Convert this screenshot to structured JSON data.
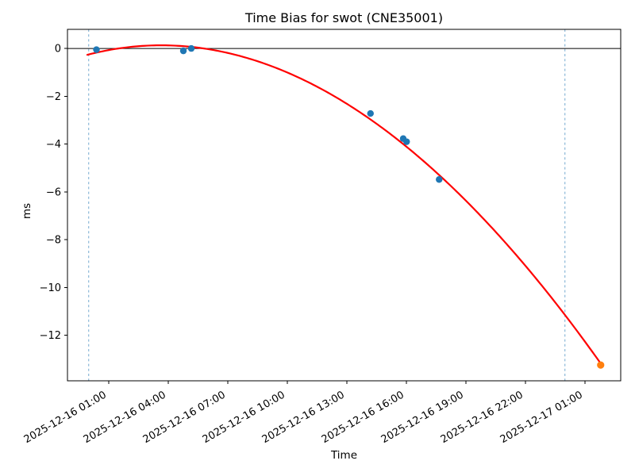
{
  "chart_data": {
    "type": "scatter",
    "title": "Time Bias for swot (CNE35001)",
    "xlabel": "Time",
    "ylabel": "ms",
    "x_axis": {
      "unit": "hours since 2025-12-16 00:00",
      "lim_hours": [
        -1.07,
        26.81
      ],
      "tick_hours": [
        1,
        4,
        7,
        10,
        13,
        16,
        19,
        22,
        25
      ],
      "tick_labels": [
        "2025-12-16 01:00",
        "2025-12-16 04:00",
        "2025-12-16 07:00",
        "2025-12-16 10:00",
        "2025-12-16 13:00",
        "2025-12-16 16:00",
        "2025-12-16 19:00",
        "2025-12-16 22:00",
        "2025-12-17 01:00"
      ]
    },
    "y_axis": {
      "lim": [
        -13.9,
        0.8
      ],
      "tick_values": [
        0,
        -2,
        -4,
        -6,
        -8,
        -10,
        -12
      ],
      "tick_labels": [
        "0",
        "−2",
        "−4",
        "−6",
        "−8",
        "−10",
        "−12"
      ]
    },
    "series": [
      {
        "name": "measured-bias-points",
        "type": "scatter",
        "color": "#1f77b4",
        "marker_radius": 4.2,
        "points": [
          {
            "time": "2025-12-16 00:23",
            "h": 0.39,
            "ms": -0.05
          },
          {
            "time": "2025-12-16 04:46",
            "h": 4.77,
            "ms": -0.1
          },
          {
            "time": "2025-12-16 05:10",
            "h": 5.17,
            "ms": 0.0
          },
          {
            "time": "2025-12-16 14:12",
            "h": 14.2,
            "ms": -2.72
          },
          {
            "time": "2025-12-16 15:51",
            "h": 15.85,
            "ms": -3.77
          },
          {
            "time": "2025-12-16 16:01",
            "h": 16.02,
            "ms": -3.9
          },
          {
            "time": "2025-12-16 17:40",
            "h": 17.66,
            "ms": -5.48
          }
        ]
      },
      {
        "name": "predicted-bias-point",
        "type": "scatter",
        "color": "#ff7f0e",
        "marker_radius": 4.6,
        "points": [
          {
            "time": "2025-12-17 01:48",
            "h": 25.8,
            "ms": -13.24
          }
        ]
      },
      {
        "name": "polynomial-fit-curve",
        "type": "line",
        "color": "#ff0000",
        "line_width": 2.2,
        "fit": {
          "form": "ms = c0 + c2*(h-hv)^2 + c3*(h-hv)^3",
          "hv": 3.65,
          "c0": 0.1327,
          "c2": -0.028533,
          "c3": 6.379e-05,
          "h_start": -0.07,
          "h_end": 25.8,
          "peak": {
            "h": 3.65,
            "ms": 0.13
          }
        }
      }
    ],
    "vlines": [
      {
        "time": "2025-12-16 00:00",
        "h": 0,
        "style": "dashed",
        "color": "#74a9cf"
      },
      {
        "time": "2025-12-17 00:00",
        "h": 24,
        "style": "dashed",
        "color": "#74a9cf"
      }
    ],
    "zero_line": {
      "ms": 0,
      "color": "#000000"
    },
    "legend": "none",
    "grid": false
  }
}
